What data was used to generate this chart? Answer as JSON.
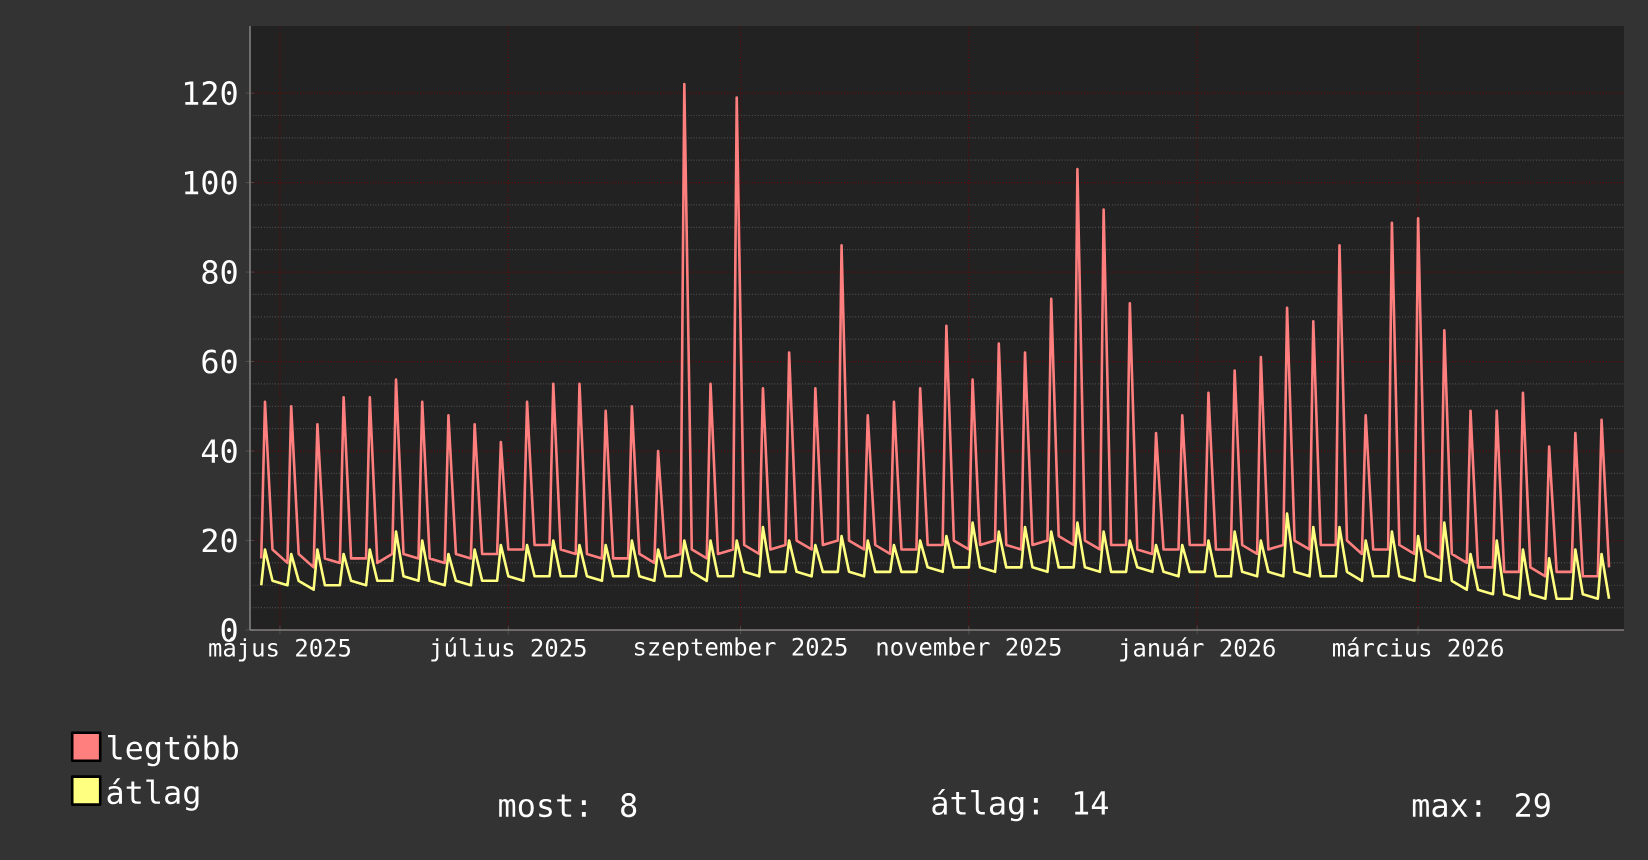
{
  "chart_data": {
    "type": "line",
    "x": [
      "2025-04-26",
      "2025-04-27",
      "2025-04-29",
      "2025-05-03",
      "2025-05-04",
      "2025-05-06",
      "2025-05-10",
      "2025-05-11",
      "2025-05-13",
      "2025-05-17",
      "2025-05-18",
      "2025-05-20",
      "2025-05-24",
      "2025-05-25",
      "2025-05-27",
      "2025-05-31",
      "2025-06-01",
      "2025-06-03",
      "2025-06-07",
      "2025-06-08",
      "2025-06-10",
      "2025-06-14",
      "2025-06-15",
      "2025-06-17",
      "2025-06-21",
      "2025-06-22",
      "2025-06-24",
      "2025-06-28",
      "2025-06-29",
      "2025-07-01",
      "2025-07-05",
      "2025-07-06",
      "2025-07-08",
      "2025-07-12",
      "2025-07-13",
      "2025-07-15",
      "2025-07-19",
      "2025-07-20",
      "2025-07-22",
      "2025-07-26",
      "2025-07-27",
      "2025-07-29",
      "2025-08-02",
      "2025-08-03",
      "2025-08-05",
      "2025-08-09",
      "2025-08-10",
      "2025-08-12",
      "2025-08-16",
      "2025-08-17",
      "2025-08-19",
      "2025-08-23",
      "2025-08-24",
      "2025-08-26",
      "2025-08-30",
      "2025-08-31",
      "2025-09-02",
      "2025-09-06",
      "2025-09-07",
      "2025-09-09",
      "2025-09-13",
      "2025-09-14",
      "2025-09-16",
      "2025-09-20",
      "2025-09-21",
      "2025-09-23",
      "2025-09-27",
      "2025-09-28",
      "2025-09-30",
      "2025-10-04",
      "2025-10-05",
      "2025-10-07",
      "2025-10-11",
      "2025-10-12",
      "2025-10-14",
      "2025-10-18",
      "2025-10-19",
      "2025-10-21",
      "2025-10-25",
      "2025-10-26",
      "2025-10-28",
      "2025-11-01",
      "2025-11-02",
      "2025-11-04",
      "2025-11-08",
      "2025-11-09",
      "2025-11-11",
      "2025-11-15",
      "2025-11-16",
      "2025-11-18",
      "2025-11-22",
      "2025-11-23",
      "2025-11-25",
      "2025-11-29",
      "2025-11-30",
      "2025-12-02",
      "2025-12-06",
      "2025-12-07",
      "2025-12-09",
      "2025-12-13",
      "2025-12-14",
      "2025-12-16",
      "2025-12-20",
      "2025-12-21",
      "2025-12-23",
      "2025-12-27",
      "2025-12-28",
      "2025-12-30",
      "2026-01-03",
      "2026-01-04",
      "2026-01-06",
      "2026-01-10",
      "2026-01-11",
      "2026-01-13",
      "2026-01-17",
      "2026-01-18",
      "2026-01-20",
      "2026-01-24",
      "2026-01-25",
      "2026-01-27",
      "2026-01-31",
      "2026-02-01",
      "2026-02-03",
      "2026-02-07",
      "2026-02-08",
      "2026-02-10",
      "2026-02-14",
      "2026-02-15",
      "2026-02-17",
      "2026-02-21",
      "2026-02-22",
      "2026-02-24",
      "2026-02-28",
      "2026-03-01",
      "2026-03-03",
      "2026-03-07",
      "2026-03-08",
      "2026-03-10",
      "2026-03-14",
      "2026-03-15",
      "2026-03-17",
      "2026-03-21",
      "2026-03-22",
      "2026-03-24",
      "2026-03-28",
      "2026-03-29",
      "2026-03-31",
      "2026-04-04",
      "2026-04-05",
      "2026-04-07",
      "2026-04-11",
      "2026-04-12",
      "2026-04-14",
      "2026-04-18",
      "2026-04-19",
      "2026-04-21"
    ],
    "series": [
      {
        "name": "legtöbb",
        "color": "#ff7f7f",
        "values": [
          16,
          51,
          18,
          15,
          50,
          17,
          14,
          46,
          16,
          15,
          52,
          16,
          16,
          52,
          15,
          17,
          56,
          17,
          16,
          51,
          16,
          15,
          48,
          17,
          16,
          46,
          17,
          17,
          42,
          18,
          18,
          51,
          19,
          19,
          55,
          18,
          17,
          55,
          17,
          16,
          49,
          16,
          16,
          50,
          17,
          15,
          40,
          16,
          17,
          122,
          18,
          16,
          55,
          17,
          18,
          119,
          19,
          17,
          54,
          18,
          19,
          62,
          20,
          18,
          54,
          19,
          20,
          86,
          20,
          18,
          48,
          19,
          17,
          51,
          18,
          18,
          54,
          19,
          19,
          68,
          20,
          18,
          56,
          19,
          20,
          64,
          19,
          18,
          62,
          19,
          20,
          74,
          21,
          19,
          103,
          20,
          18,
          94,
          19,
          19,
          73,
          18,
          17,
          44,
          18,
          18,
          48,
          19,
          19,
          53,
          18,
          18,
          58,
          19,
          17,
          61,
          18,
          19,
          72,
          20,
          18,
          69,
          19,
          19,
          86,
          20,
          17,
          48,
          18,
          18,
          91,
          19,
          17,
          92,
          18,
          16,
          67,
          17,
          15,
          49,
          14,
          14,
          49,
          13,
          13,
          53,
          14,
          12,
          41,
          13,
          13,
          44,
          12,
          12,
          47,
          14
        ]
      },
      {
        "name": "átlag",
        "color": "#ffff80",
        "values": [
          10,
          18,
          11,
          10,
          17,
          11,
          9,
          18,
          10,
          10,
          17,
          11,
          10,
          18,
          11,
          11,
          22,
          12,
          11,
          20,
          11,
          10,
          17,
          11,
          10,
          18,
          11,
          11,
          19,
          12,
          11,
          19,
          12,
          12,
          20,
          12,
          12,
          19,
          12,
          11,
          19,
          12,
          12,
          20,
          12,
          11,
          18,
          12,
          12,
          20,
          13,
          11,
          20,
          12,
          12,
          20,
          13,
          12,
          23,
          13,
          13,
          20,
          13,
          12,
          19,
          13,
          13,
          21,
          13,
          12,
          20,
          13,
          13,
          19,
          13,
          13,
          20,
          14,
          13,
          21,
          14,
          14,
          24,
          14,
          13,
          22,
          14,
          14,
          23,
          14,
          13,
          22,
          14,
          14,
          24,
          14,
          13,
          22,
          13,
          13,
          20,
          14,
          13,
          19,
          13,
          12,
          19,
          13,
          13,
          20,
          12,
          12,
          22,
          13,
          12,
          20,
          13,
          12,
          26,
          13,
          12,
          23,
          12,
          12,
          23,
          13,
          11,
          20,
          12,
          12,
          22,
          12,
          11,
          21,
          12,
          11,
          24,
          11,
          9,
          17,
          9,
          8,
          20,
          8,
          7,
          18,
          8,
          7,
          16,
          7,
          7,
          18,
          8,
          7,
          17,
          7
        ]
      }
    ],
    "xlim": [
      "2025-04-23",
      "2026-04-25"
    ],
    "xticks": [
      {
        "value": "2025-05-01",
        "label": "május 2025"
      },
      {
        "value": "2025-07-01",
        "label": "július 2025"
      },
      {
        "value": "2025-09-01",
        "label": "szeptember 2025"
      },
      {
        "value": "2025-11-01",
        "label": "november 2025"
      },
      {
        "value": "2026-01-01",
        "label": "január 2026"
      },
      {
        "value": "2026-03-01",
        "label": "március 2026"
      }
    ],
    "ylim": [
      0,
      135
    ],
    "yticks": [
      0,
      20,
      40,
      60,
      80,
      100,
      120
    ],
    "grid": true,
    "legend": "bottom left",
    "annotations": [
      "most: 8",
      "átlag: 14",
      "max: 29"
    ]
  }
}
